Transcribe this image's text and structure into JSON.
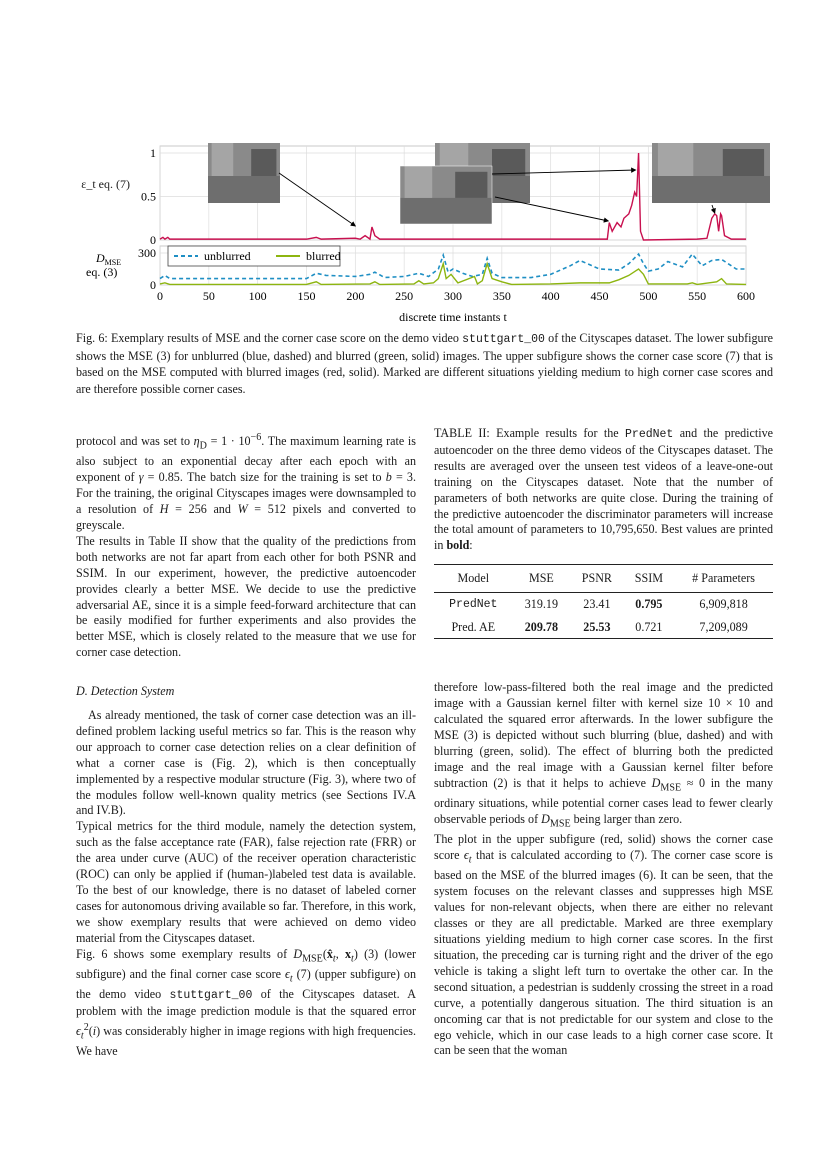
{
  "figure": {
    "caption": "Fig. 6: Exemplary results of MSE and the corner case score on the demo video <span class=\"mono\">stuttgart_00</span> of the Cityscapes dataset. The lower subfigure shows the MSE (3) for unblurred (blue, dashed) and blurred (green, solid) images. The upper subfigure shows the corner case score (7) that is based on the MSE computed with blurred images (red, solid). Marked are different situations yielding medium to high corner case scores and are therefore possible corner cases."
  },
  "chart_data": [
    {
      "type": "line",
      "ylabel": "ε_t eq. (7)",
      "ylim": [
        0,
        1
      ],
      "yticks": [
        "0",
        "0.5",
        "1"
      ],
      "xlim": [
        0,
        600
      ],
      "grid": true,
      "series": [
        {
          "color": "#c8104f",
          "x": [
            0,
            3,
            5,
            8,
            10,
            12,
            150,
            160,
            165,
            200,
            205,
            210,
            215,
            217,
            220,
            225,
            300,
            450,
            458,
            460,
            463,
            468,
            472,
            475,
            480,
            483,
            486,
            488,
            490,
            492,
            495,
            550,
            560,
            565,
            568,
            570,
            572,
            574,
            575,
            578,
            585,
            600
          ],
          "y": [
            0.01,
            0.03,
            0.01,
            0.03,
            0.01,
            0.01,
            0.01,
            0.03,
            0.01,
            0.02,
            0.01,
            0.05,
            0.01,
            0.15,
            0.05,
            0.01,
            0.01,
            0.01,
            0.01,
            0.2,
            0.1,
            0.2,
            0.15,
            0.25,
            0.3,
            0.4,
            0.55,
            0.5,
            1.0,
            0.1,
            0.0,
            0.01,
            0.02,
            0.25,
            0.3,
            0.28,
            0.1,
            0.3,
            0.28,
            0.05,
            0.01,
            0.01
          ]
        }
      ],
      "insets": [
        "first situation: preceding car turning right",
        "second situation: pedestrian crossing",
        "third situation: oncoming car"
      ],
      "annotated_x": [
        200,
        460,
        490,
        568
      ]
    },
    {
      "type": "line",
      "ylabel": "D_MSE eq. (3)",
      "xlabel": "discrete time instants t",
      "ylim": [
        0,
        300
      ],
      "yticks": [
        "0",
        "300"
      ],
      "xlim": [
        0,
        600
      ],
      "xticks": [
        "0",
        "50",
        "100",
        "150",
        "200",
        "250",
        "300",
        "350",
        "400",
        "450",
        "500",
        "550",
        "600"
      ],
      "grid": true,
      "legend": "top-left",
      "series": [
        {
          "name": "unblurred",
          "color": "#1f8fc4",
          "dash": true,
          "x": [
            0,
            5,
            10,
            20,
            150,
            160,
            170,
            200,
            215,
            220,
            230,
            250,
            265,
            275,
            285,
            290,
            295,
            300,
            310,
            320,
            330,
            335,
            340,
            350,
            380,
            400,
            420,
            430,
            450,
            470,
            480,
            490,
            495,
            500,
            510,
            520,
            535,
            545,
            555,
            565,
            575,
            590,
            600
          ],
          "y": [
            60,
            90,
            60,
            60,
            60,
            110,
            90,
            80,
            100,
            120,
            70,
            80,
            110,
            80,
            150,
            280,
            120,
            150,
            110,
            80,
            100,
            250,
            110,
            70,
            70,
            100,
            180,
            230,
            150,
            140,
            200,
            290,
            200,
            130,
            150,
            220,
            170,
            290,
            180,
            230,
            240,
            150,
            150
          ]
        },
        {
          "name": "blurred",
          "color": "#8db510",
          "dash": false,
          "x": [
            0,
            5,
            10,
            150,
            160,
            165,
            215,
            220,
            225,
            260,
            265,
            270,
            280,
            285,
            290,
            293,
            298,
            305,
            322,
            325,
            330,
            335,
            340,
            350,
            360,
            400,
            430,
            460,
            470,
            480,
            490,
            495,
            500,
            540,
            545,
            550,
            570,
            575,
            580,
            600
          ],
          "y": [
            10,
            20,
            5,
            5,
            30,
            5,
            10,
            30,
            5,
            10,
            40,
            10,
            20,
            60,
            200,
            60,
            100,
            20,
            80,
            10,
            40,
            200,
            60,
            30,
            5,
            10,
            20,
            20,
            50,
            90,
            150,
            100,
            10,
            10,
            20,
            5,
            30,
            60,
            10,
            5
          ]
        }
      ]
    }
  ],
  "left": {
    "p1": "protocol and was set to <i>η</i><sub>D</sub> = 1 · 10<sup>−6</sup>. The maximum learning rate is also subject to an exponential decay after each epoch with an exponent of <i>γ</i> = 0.85. The batch size for the training is set to <i>b</i> = 3. For the training, the original Cityscapes images were downsampled to a resolution of <i>H</i> = 256 and <i>W</i> = 512 pixels and converted to greyscale.",
    "p2": "The results in Table II show that the quality of the predictions from both networks are not far apart from each other for both PSNR and SSIM. In our experiment, however, the predictive autoencoder provides clearly a better MSE. We decide to use the predictive adversarial AE, since it is a simple feed-forward architecture that can be easily modified for further experiments and also provides the better MSE, which is closely related to the measure that we use for corner case detection.",
    "heading": "D. Detection System",
    "p3": "As already mentioned, the task of corner case detection was an ill-defined problem lacking useful metrics so far. This is the reason why our approach to corner case detection relies on a clear definition of what a corner case is (Fig. 2), which is then conceptually implemented by a respective modular structure (Fig. 3), where two of the modules follow well-known quality metrics (see Sections IV.A and IV.B).",
    "p4": "Typical metrics for the third module, namely the detection system, such as the false acceptance rate (FAR), false rejection rate (FRR) or the area under curve (AUC) of the receiver operation characteristic (ROC) can only be applied if (human-)labeled test data is available. To the best of our knowledge, there is no dataset of labeled corner cases for autonomous driving available so far. Therefore, in this work, we show exemplary results that were achieved on demo video material from the Cityscapes dataset.",
    "p5": "Fig. 6 shows some exemplary results of <i>D</i><sub>MSE</sub>(<b>x̂</b><sub><i>t</i></sub>, <b>x</b><sub><i>t</i></sub>) (3) (lower subfigure) and the final corner case score <i>ϵ</i><sub><i>t</i></sub> (7) (upper subfigure) on the demo video <span class=\"mono\">stuttgart_00</span> of the Cityscapes dataset. A problem with the image prediction module is that the squared error <i>ϵ</i><sub><i>t</i></sub><sup>2</sup>(<i>i</i>) was considerably higher in image regions with high frequencies. We have"
  },
  "right": {
    "table_caption": "TABLE II: Example results for the <span class=\"mono\">PredNet</span> and the predictive autoencoder on the three demo videos of the Cityscapes dataset. The results are averaged over the unseen test videos of a leave-one-out training on the Cityscapes dataset. Note that the number of parameters of both networks are quite close. During the training of the predictive autoencoder the discriminator parameters will increase the total amount of parameters to 10,795,650. Best values are printed in <b>bold</b>:",
    "table": {
      "headers": [
        "Model",
        "MSE",
        "PSNR",
        "SSIM",
        "# Parameters"
      ],
      "rows": [
        [
          "PredNet",
          "319.19",
          "23.41",
          "0.795",
          "6,909,818"
        ],
        [
          "Pred. AE",
          "209.78",
          "25.53",
          "0.721",
          "7,209,089"
        ]
      ]
    },
    "p6": "therefore low-pass-filtered both the real image and the predicted image with a Gaussian kernel filter with kernel size 10 × 10 and calculated the squared error afterwards. In the lower subfigure the MSE (3) is depicted without such blurring (blue, dashed) and with blurring (green, solid). The effect of blurring both the predicted image and the real image with a Gaussian kernel filter before subtraction (2) is that it helps to achieve <i>D</i><sub>MSE</sub> ≈ 0 in the many ordinary situations, while potential corner cases lead to fewer clearly observable periods of <i>D</i><sub>MSE</sub> being larger than zero.",
    "p7": "The plot in the upper subfigure (red, solid) shows the corner case score <i>ϵ</i><sub><i>t</i></sub> that is calculated according to (7). The corner case score is based on the MSE of the blurred images (6). It can be seen, that the system focuses on the relevant classes and suppresses high MSE values for non-relevant objects, when there are either no relevant classes or they are all predictable. Marked are three exemplary situations yielding medium to high corner case scores. In the first situation, the preceding car is turning right and the driver of the ego vehicle is taking a slight left turn to overtake the other car. In the second situation, a pedestrian is suddenly crossing the street in a road curve, a potentially dangerous situation. The third situation is an oncoming car that is not predictable for our system and close to the ego vehicle, which in our case leads to a high corner case score. It can be seen that the woman"
  }
}
